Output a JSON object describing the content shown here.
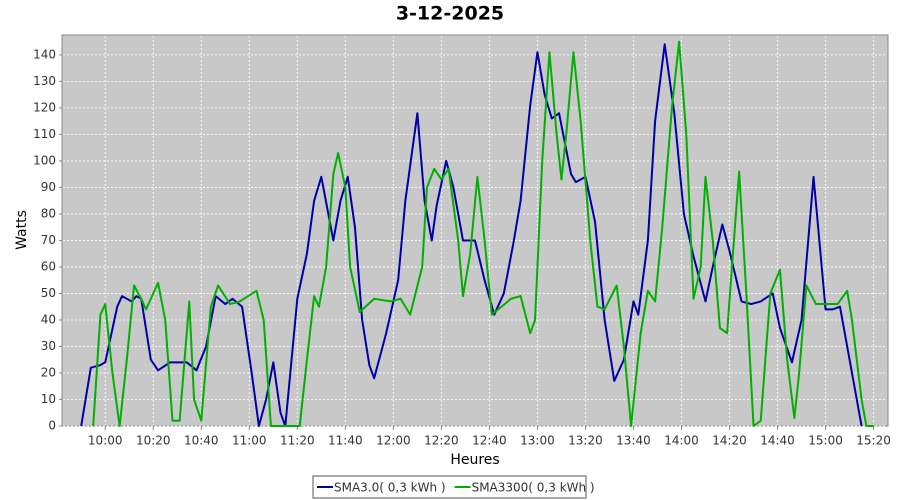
{
  "chart_data": {
    "type": "line",
    "title": "3-12-2025",
    "xlabel": "Heures",
    "ylabel": "Watts",
    "xlim": [
      "09:42",
      "15:26"
    ],
    "ylim": [
      0,
      147.5
    ],
    "xticks": [
      "10:00",
      "10:20",
      "10:40",
      "11:00",
      "11:20",
      "11:40",
      "12:00",
      "12:20",
      "12:40",
      "13:00",
      "13:20",
      "13:40",
      "14:00",
      "14:20",
      "14:40",
      "15:00",
      "15:20"
    ],
    "yticks": [
      0,
      10,
      20,
      30,
      40,
      50,
      60,
      70,
      80,
      90,
      100,
      110,
      120,
      130,
      140
    ],
    "grid": true,
    "legend": "bottom",
    "series": [
      {
        "name": "SMA3.0( 0,3 kWh )",
        "color": "#0000a8",
        "x": [
          "09:50",
          "09:54",
          "09:58",
          "10:00",
          "10:05",
          "10:07",
          "10:11",
          "10:13",
          "10:15",
          "10:19",
          "10:22",
          "10:27",
          "10:34",
          "10:38",
          "10:42",
          "10:46",
          "10:50",
          "10:53",
          "10:57",
          "11:01",
          "11:04",
          "11:07",
          "11:10",
          "11:13",
          "11:15",
          "11:20",
          "11:24",
          "11:27",
          "11:30",
          "11:35",
          "11:38",
          "11:41",
          "11:44",
          "11:47",
          "11:50",
          "11:52",
          "11:57",
          "12:02",
          "12:05",
          "12:10",
          "12:13",
          "12:16",
          "12:18",
          "12:22",
          "12:25",
          "12:29",
          "12:34",
          "12:38",
          "12:42",
          "12:46",
          "12:50",
          "12:53",
          "12:57",
          "13:00",
          "13:03",
          "13:06",
          "13:09",
          "13:14",
          "13:16",
          "13:20",
          "13:24",
          "13:28",
          "13:32",
          "13:36",
          "13:40",
          "13:42",
          "13:46",
          "13:49",
          "13:53",
          "13:57",
          "14:01",
          "14:05",
          "14:10",
          "14:13",
          "14:17",
          "14:20",
          "14:25",
          "14:29",
          "14:33",
          "14:38",
          "14:41",
          "14:46",
          "14:50",
          "14:55",
          "15:00",
          "15:03",
          "15:06",
          "15:10",
          "15:15"
        ],
        "values": [
          0,
          22,
          23,
          24,
          45,
          49,
          47,
          49,
          48,
          25,
          21,
          24,
          24,
          21,
          30,
          49,
          46,
          48,
          45,
          20,
          0,
          10,
          24,
          5,
          0,
          48,
          65,
          85,
          94,
          70,
          85,
          94,
          75,
          40,
          23,
          18,
          35,
          55,
          85,
          118,
          85,
          70,
          83,
          100,
          90,
          70,
          70,
          55,
          42,
          50,
          69,
          85,
          121,
          141,
          125,
          116,
          118,
          95,
          92,
          94,
          77,
          40,
          17,
          25,
          47,
          42,
          70,
          115,
          144,
          118,
          80,
          64,
          47,
          60,
          76,
          66,
          47,
          46,
          47,
          50,
          37,
          24,
          40,
          94,
          44,
          44,
          45,
          25,
          0
        ]
      },
      {
        "name": "SMA3300( 0,3 kWh )",
        "color": "#00b000",
        "x": [
          "09:55",
          "09:58",
          "10:00",
          "10:03",
          "10:06",
          "10:09",
          "10:12",
          "10:15",
          "10:17",
          "10:22",
          "10:25",
          "10:28",
          "10:31",
          "10:35",
          "10:37",
          "10:40",
          "10:44",
          "10:47",
          "10:52",
          "10:56",
          "11:03",
          "11:06",
          "11:09",
          "11:21",
          "11:24",
          "11:27",
          "11:29",
          "11:32",
          "11:35",
          "11:37",
          "11:40",
          "11:42",
          "11:46",
          "11:52",
          "11:59",
          "12:03",
          "12:07",
          "12:12",
          "12:14",
          "12:17",
          "12:20",
          "12:23",
          "12:27",
          "12:29",
          "12:32",
          "12:35",
          "12:38",
          "12:41",
          "12:45",
          "12:49",
          "12:53",
          "12:57",
          "12:59",
          "13:02",
          "13:05",
          "13:08",
          "13:10",
          "13:12",
          "13:15",
          "13:18",
          "13:22",
          "13:25",
          "13:28",
          "13:33",
          "13:36",
          "13:39",
          "13:43",
          "13:46",
          "13:49",
          "13:52",
          "13:56",
          "13:59",
          "14:02",
          "14:05",
          "14:08",
          "14:10",
          "14:13",
          "14:16",
          "14:19",
          "14:21",
          "14:24",
          "14:27",
          "14:30",
          "14:33",
          "14:37",
          "14:41",
          "14:44",
          "14:47",
          "14:49",
          "14:52",
          "14:56",
          "15:00",
          "15:05",
          "15:09",
          "15:11",
          "15:15",
          "15:17",
          "15:20"
        ],
        "values": [
          0,
          42,
          46,
          20,
          0,
          25,
          53,
          48,
          44,
          54,
          40,
          2,
          2,
          47,
          10,
          2,
          45,
          53,
          46,
          47,
          51,
          40,
          0,
          0,
          25,
          49,
          45,
          60,
          95,
          103,
          90,
          60,
          43,
          48,
          47,
          48,
          42,
          60,
          90,
          97,
          93,
          97,
          70,
          49,
          65,
          94,
          70,
          42,
          45,
          48,
          49,
          35,
          40,
          100,
          141,
          110,
          93,
          110,
          141,
          115,
          70,
          45,
          44,
          53,
          30,
          0,
          35,
          51,
          47,
          75,
          120,
          145,
          110,
          48,
          60,
          94,
          70,
          37,
          35,
          60,
          96,
          50,
          0,
          2,
          50,
          59,
          25,
          3,
          20,
          53,
          46,
          46,
          46,
          51,
          40,
          10,
          0,
          0
        ]
      }
    ]
  }
}
